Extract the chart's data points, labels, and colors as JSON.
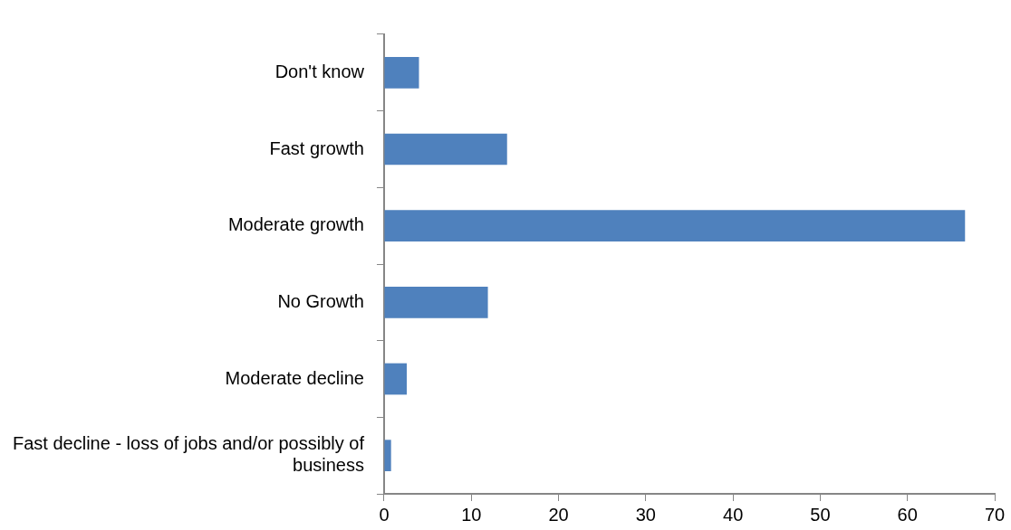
{
  "chart_data": {
    "type": "bar",
    "orientation": "horizontal",
    "categories": [
      "Don't know",
      "Fast growth",
      "Moderate growth",
      "No Growth",
      "Moderate decline",
      "Fast decline - loss of jobs and/or possibly of business"
    ],
    "values": [
      4.0,
      14.1,
      66.6,
      11.9,
      2.6,
      0.8
    ],
    "color": "#4f81bd",
    "xlim": [
      0,
      70
    ],
    "xticks": [
      0,
      10,
      20,
      30,
      40,
      50,
      60,
      70
    ],
    "grid": false,
    "legend": false
  }
}
